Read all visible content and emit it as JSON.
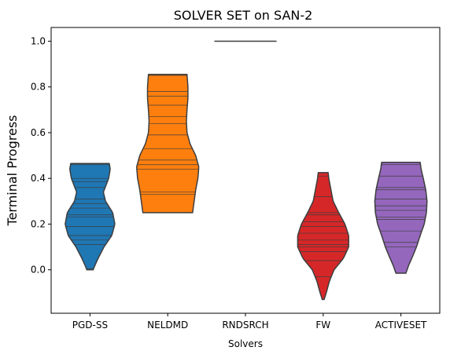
{
  "chart_data": {
    "type": "violin",
    "title": "SOLVER SET on SAN-2",
    "xlabel": "Solvers",
    "ylabel": "Terminal Progress",
    "ylim": [
      -0.19,
      1.06
    ],
    "yticks": [
      "0.0",
      "0.2",
      "0.4",
      "0.6",
      "0.8",
      "1.0"
    ],
    "grid": false,
    "categories": [
      "PGD-SS",
      "NELDMD",
      "RNDSRCH",
      "FW",
      "ACTIVESET"
    ],
    "series": [
      {
        "category": "PGD-SS",
        "color": "#1f77b4",
        "min": 0.0,
        "max": 0.465,
        "density": [
          [
            0.0,
            0.1
          ],
          [
            0.02,
            0.16
          ],
          [
            0.05,
            0.26
          ],
          [
            0.1,
            0.45
          ],
          [
            0.15,
            0.7
          ],
          [
            0.2,
            0.8
          ],
          [
            0.25,
            0.73
          ],
          [
            0.3,
            0.5
          ],
          [
            0.34,
            0.43
          ],
          [
            0.4,
            0.6
          ],
          [
            0.44,
            0.65
          ],
          [
            0.465,
            0.62
          ]
        ],
        "inner_lines": [
          0.005,
          0.11,
          0.13,
          0.15,
          0.19,
          0.23,
          0.24,
          0.27,
          0.29,
          0.31,
          0.36,
          0.385,
          0.4,
          0.46
        ]
      },
      {
        "category": "NELDMD",
        "color": "#ff7f0e",
        "min": 0.25,
        "max": 0.855,
        "density": [
          [
            0.25,
            0.8
          ],
          [
            0.3,
            0.85
          ],
          [
            0.35,
            0.9
          ],
          [
            0.4,
            0.97
          ],
          [
            0.45,
            1.0
          ],
          [
            0.5,
            0.9
          ],
          [
            0.55,
            0.72
          ],
          [
            0.6,
            0.62
          ],
          [
            0.65,
            0.6
          ],
          [
            0.7,
            0.62
          ],
          [
            0.75,
            0.65
          ],
          [
            0.8,
            0.65
          ],
          [
            0.855,
            0.62
          ]
        ],
        "inner_lines": [
          0.33,
          0.34,
          0.44,
          0.46,
          0.48,
          0.53,
          0.59,
          0.64,
          0.67,
          0.72,
          0.76,
          0.78,
          0.85
        ]
      },
      {
        "category": "RNDSRCH",
        "color": "#2ca02c",
        "min": 1.0,
        "max": 1.0,
        "density": [],
        "inner_lines": [
          1.0
        ]
      },
      {
        "category": "FW",
        "color": "#d62728",
        "min": -0.13,
        "max": 0.425,
        "density": [
          [
            -0.13,
            0.03
          ],
          [
            -0.1,
            0.1
          ],
          [
            -0.05,
            0.2
          ],
          [
            0.0,
            0.35
          ],
          [
            0.05,
            0.65
          ],
          [
            0.1,
            0.82
          ],
          [
            0.15,
            0.82
          ],
          [
            0.2,
            0.7
          ],
          [
            0.25,
            0.5
          ],
          [
            0.3,
            0.32
          ],
          [
            0.35,
            0.25
          ],
          [
            0.4,
            0.18
          ],
          [
            0.425,
            0.16
          ]
        ],
        "inner_lines": [
          -0.03,
          0.04,
          0.08,
          0.1,
          0.11,
          0.13,
          0.16,
          0.19,
          0.21,
          0.24,
          0.25,
          0.32,
          0.41
        ]
      },
      {
        "category": "ACTIVESET",
        "color": "#9467bd",
        "min": -0.015,
        "max": 0.47,
        "density": [
          [
            -0.015,
            0.16
          ],
          [
            0.02,
            0.25
          ],
          [
            0.06,
            0.38
          ],
          [
            0.1,
            0.5
          ],
          [
            0.15,
            0.62
          ],
          [
            0.2,
            0.75
          ],
          [
            0.25,
            0.82
          ],
          [
            0.3,
            0.84
          ],
          [
            0.35,
            0.8
          ],
          [
            0.4,
            0.72
          ],
          [
            0.44,
            0.65
          ],
          [
            0.47,
            0.62
          ]
        ],
        "inner_lines": [
          0.1,
          0.12,
          0.17,
          0.22,
          0.23,
          0.26,
          0.28,
          0.31,
          0.35,
          0.36,
          0.41,
          0.46
        ]
      }
    ]
  }
}
